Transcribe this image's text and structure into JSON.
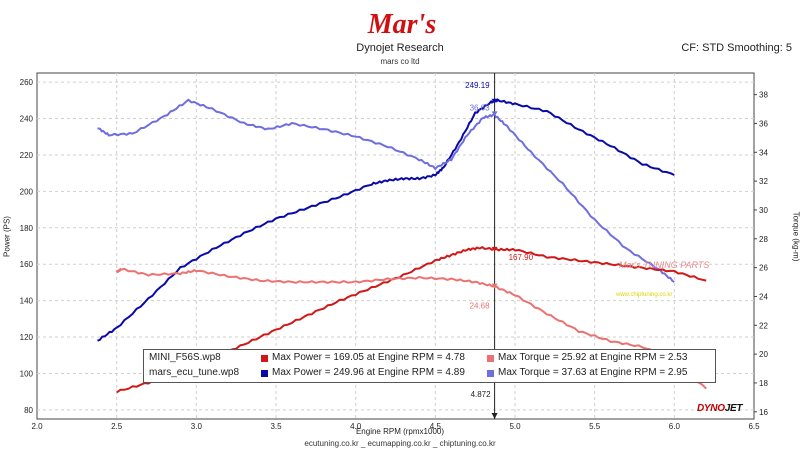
{
  "header": {
    "logo_text": "Mar's",
    "title": "Dynojet Research",
    "subtitle": "mars co ltd",
    "right_info": "CF: STD Smoothing: 5"
  },
  "footer": {
    "text": "ecutuning.co.kr _ ecumapping.co.kr _ chiptuning.co.kr"
  },
  "watermark": {
    "text": "Mar's TUNING PARTS",
    "sub": "www.chiptuning.co.kr"
  },
  "brand": {
    "dyno_a": "DYNO",
    "dyno_b": "JET"
  },
  "colors": {
    "red": "#d01818",
    "light_red": "#ec7272",
    "blue": "#0a0aa8",
    "light_blue": "#6e6ee0"
  },
  "legend": [
    {
      "file": "MINI_F56S.wp8",
      "power": "Max Power = 169.05 at Engine RPM = 4.78",
      "torque": "Max Torque = 25.92 at Engine RPM = 2.53"
    },
    {
      "file": "mars_ecu_tune.wp8",
      "power": "Max Power = 249.96 at Engine RPM = 4.89",
      "torque": "Max Torque = 37.63 at Engine RPM = 2.95"
    }
  ],
  "chart_data": {
    "type": "line",
    "title": "Dynojet Research",
    "xlabel": "Engine RPM (rpmx1000)",
    "ylabel": "Power (PS)",
    "y2label": "Torque (kg-m)",
    "xlim": [
      2.0,
      6.5
    ],
    "ylim": [
      75,
      265
    ],
    "y2lim": [
      15.5,
      39.5
    ],
    "xticks": [
      "2.0",
      "2.5",
      "3.0",
      "3.5",
      "4.0",
      "4.5",
      "5.0",
      "5.5",
      "6.0",
      "6.5"
    ],
    "yticks": [
      "80",
      "100",
      "120",
      "140",
      "160",
      "180",
      "200",
      "220",
      "240",
      "260"
    ],
    "y2ticks": [
      "16",
      "18",
      "20",
      "22",
      "24",
      "26",
      "28",
      "30",
      "32",
      "34",
      "36",
      "38"
    ],
    "grid": true,
    "cursor": {
      "x": 4.872,
      "label": "4.872"
    },
    "annotations": [
      {
        "text": "249.19",
        "x": 4.872,
        "y": 249.19,
        "axis": "left",
        "color": "#0a0aa8"
      },
      {
        "text": "36.63",
        "x": 4.872,
        "y": 36.63,
        "axis": "right",
        "color": "#6e6ee0"
      },
      {
        "text": "167.90",
        "x": 4.872,
        "y": 167.9,
        "axis": "left",
        "color": "#d01818"
      },
      {
        "text": "24.68",
        "x": 4.872,
        "y": 24.68,
        "axis": "right",
        "color": "#ec7272"
      }
    ],
    "series": [
      {
        "name": "mars_ecu_tune.wp8 Power",
        "axis": "left",
        "color": "#0a0aa8",
        "x": [
          2.38,
          2.5,
          2.7,
          2.9,
          3.1,
          3.3,
          3.5,
          3.7,
          3.9,
          4.1,
          4.2,
          4.3,
          4.4,
          4.5,
          4.55,
          4.65,
          4.75,
          4.85,
          4.89,
          5.0,
          5.2,
          5.4,
          5.6,
          5.8,
          6.0
        ],
        "y": [
          118,
          125,
          141,
          158,
          168,
          177,
          185,
          191,
          197,
          204,
          206,
          207,
          207,
          209,
          213,
          227,
          243,
          249,
          250,
          248,
          244,
          234,
          225,
          215,
          209
        ]
      },
      {
        "name": "mars_ecu_tune.wp8 Torque",
        "axis": "right",
        "color": "#6e6ee0",
        "x": [
          2.38,
          2.45,
          2.6,
          2.8,
          2.95,
          3.1,
          3.3,
          3.45,
          3.6,
          3.8,
          4.0,
          4.2,
          4.4,
          4.5,
          4.6,
          4.7,
          4.8,
          4.87,
          4.95,
          5.1,
          5.3,
          5.5,
          5.7,
          5.9,
          6.0
        ],
        "y": [
          35.7,
          35.2,
          35.3,
          36.5,
          37.6,
          37.0,
          36.0,
          35.6,
          36.0,
          35.6,
          35.1,
          34.4,
          33.5,
          32.9,
          33.5,
          35.2,
          36.4,
          36.6,
          35.8,
          34.0,
          31.8,
          29.3,
          27.3,
          25.9,
          25.0
        ]
      },
      {
        "name": "MINI_F56S.wp8 Power",
        "axis": "left",
        "color": "#d01818",
        "x": [
          2.5,
          2.7,
          2.9,
          3.1,
          3.3,
          3.5,
          3.7,
          3.9,
          4.1,
          4.3,
          4.5,
          4.6,
          4.7,
          4.78,
          4.9,
          5.0,
          5.2,
          5.4,
          5.6,
          5.8,
          6.0,
          6.2
        ],
        "y": [
          90,
          95,
          100,
          108,
          116,
          124,
          132,
          140,
          147,
          154,
          162,
          165,
          168,
          169,
          168,
          168,
          164,
          162,
          160,
          158,
          156,
          151
        ]
      },
      {
        "name": "MINI_F56S.wp8 Torque",
        "axis": "right",
        "color": "#ec7272",
        "x": [
          2.5,
          2.53,
          2.7,
          2.9,
          3.0,
          3.2,
          3.4,
          3.6,
          3.8,
          4.0,
          4.2,
          4.4,
          4.6,
          4.75,
          4.87,
          5.0,
          5.2,
          5.4,
          5.6,
          5.8,
          6.0,
          6.2
        ],
        "y": [
          25.7,
          25.9,
          25.5,
          25.6,
          25.8,
          25.4,
          25.1,
          25.0,
          25.0,
          25.0,
          25.2,
          25.3,
          25.2,
          25.0,
          24.7,
          24.1,
          22.8,
          21.6,
          20.9,
          20.5,
          19.6,
          17.6
        ]
      }
    ]
  }
}
